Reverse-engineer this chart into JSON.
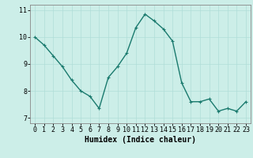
{
  "x": [
    0,
    1,
    2,
    3,
    4,
    5,
    6,
    7,
    8,
    9,
    10,
    11,
    12,
    13,
    14,
    15,
    16,
    17,
    18,
    19,
    20,
    21,
    22,
    23
  ],
  "y": [
    10.0,
    9.7,
    9.3,
    8.9,
    8.4,
    8.0,
    7.8,
    7.35,
    8.5,
    8.9,
    9.4,
    10.35,
    10.85,
    10.6,
    10.3,
    9.85,
    8.3,
    7.6,
    7.6,
    7.7,
    7.25,
    7.35,
    7.25,
    7.6
  ],
  "line_color": "#1a7a6e",
  "marker": "+",
  "marker_color": "#1a7a6e",
  "bg_color": "#cceee8",
  "grid_color": "#b0ddd8",
  "xlabel": "Humidex (Indice chaleur)",
  "xlim": [
    -0.5,
    23.5
  ],
  "ylim": [
    6.8,
    11.2
  ],
  "yticks": [
    7,
    8,
    9,
    10,
    11
  ],
  "xticks": [
    0,
    1,
    2,
    3,
    4,
    5,
    6,
    7,
    8,
    9,
    10,
    11,
    12,
    13,
    14,
    15,
    16,
    17,
    18,
    19,
    20,
    21,
    22,
    23
  ],
  "xlabel_fontsize": 7,
  "tick_fontsize": 6,
  "linewidth": 1.0,
  "markersize": 3
}
